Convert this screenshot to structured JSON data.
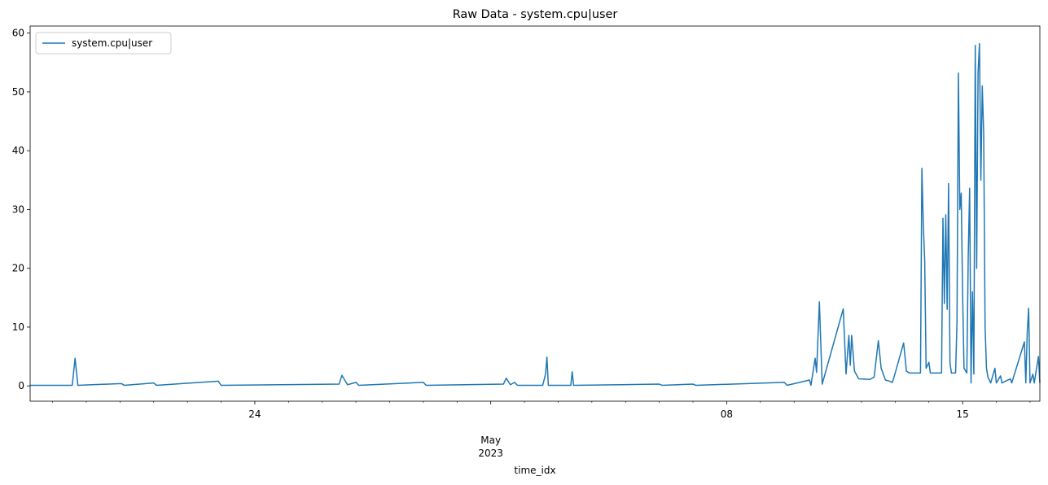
{
  "chart_data": {
    "type": "line",
    "title": "Raw Data - system.cpu|user",
    "xlabel": "time_idx",
    "x": [
      "2023-04-17 08:00",
      "2023-04-18 14:00",
      "2023-04-18 16:00",
      "2023-04-18 18:00",
      "2023-04-20 01:00",
      "2023-04-20 03:00",
      "2023-04-21 00:00",
      "2023-04-21 02:00",
      "2023-04-22 22:00",
      "2023-04-23 00:00",
      "2023-04-26 12:00",
      "2023-04-26 14:00",
      "2023-04-26 18:00",
      "2023-04-27 00:00",
      "2023-04-27 02:00",
      "2023-04-29 00:00",
      "2023-04-29 02:00",
      "2023-05-01 09:00",
      "2023-05-01 11:00",
      "2023-05-01 14:00",
      "2023-05-01 17:00",
      "2023-05-01 19:00",
      "2023-05-02 13:00",
      "2023-05-02 15:00",
      "2023-05-02 16:00",
      "2023-05-02 17:00",
      "2023-05-03 09:00",
      "2023-05-03 10:00",
      "2023-05-03 11:00",
      "2023-05-06 00:00",
      "2023-05-06 02:00",
      "2023-05-07 00:00",
      "2023-05-07 02:00",
      "2023-05-09 17:00",
      "2023-05-09 19:00",
      "2023-05-10 11:00",
      "2023-05-10 12:00",
      "2023-05-10 15:00",
      "2023-05-10 16:00",
      "2023-05-10 18:00",
      "2023-05-10 20:00",
      "2023-05-11 11:00",
      "2023-05-11 13:00",
      "2023-05-11 15:00",
      "2023-05-11 16:00",
      "2023-05-11 17:00",
      "2023-05-11 19:00",
      "2023-05-11 22:00",
      "2023-05-12 06:00",
      "2023-05-12 09:00",
      "2023-05-12 12:00",
      "2023-05-12 14:00",
      "2023-05-12 17:00",
      "2023-05-12 20:00",
      "2023-05-12 22:00",
      "2023-05-13 00:00",
      "2023-05-13 06:00",
      "2023-05-13 08:00",
      "2023-05-13 10:00",
      "2023-05-13 18:00",
      "2023-05-13 19:00",
      "2023-05-13 20:00",
      "2023-05-13 21:00",
      "2023-05-13 22:00",
      "2023-05-14 00:00",
      "2023-05-14 01:00",
      "2023-05-14 09:00",
      "2023-05-14 10:00",
      "2023-05-14 11:00",
      "2023-05-14 12:00",
      "2023-05-14 13:00",
      "2023-05-14 14:00",
      "2023-05-14 15:00",
      "2023-05-14 16:00",
      "2023-05-14 19:00",
      "2023-05-14 20:00",
      "2023-05-14 21:00",
      "2023-05-14 22:00",
      "2023-05-14 23:00",
      "2023-05-15 00:00",
      "2023-05-15 01:00",
      "2023-05-15 03:00",
      "2023-05-15 04:00",
      "2023-05-15 05:00",
      "2023-05-15 06:00",
      "2023-05-15 07:00",
      "2023-05-15 08:00",
      "2023-05-15 09:00",
      "2023-05-15 10:00",
      "2023-05-15 11:00",
      "2023-05-15 12:00",
      "2023-05-15 13:00",
      "2023-05-15 14:00",
      "2023-05-15 15:00",
      "2023-05-15 16:00",
      "2023-05-15 17:00",
      "2023-05-15 18:00",
      "2023-05-15 20:00",
      "2023-05-15 23:00",
      "2023-05-16 00:00",
      "2023-05-16 03:00",
      "2023-05-16 04:00",
      "2023-05-16 10:00",
      "2023-05-16 11:00",
      "2023-05-16 20:00",
      "2023-05-16 21:00",
      "2023-05-16 22:00",
      "2023-05-16 23:00",
      "2023-05-17 00:00",
      "2023-05-17 02:00",
      "2023-05-17 03:00",
      "2023-05-17 06:00",
      "2023-05-17 07:00"
    ],
    "series": [
      {
        "name": "system.cpu|user",
        "color": "#1f77b4",
        "values": [
          0.1,
          0.1,
          4.7,
          0.1,
          0.4,
          0.1,
          0.5,
          0.1,
          0.8,
          0.1,
          0.3,
          1.8,
          0.2,
          0.6,
          0.1,
          0.6,
          0.1,
          0.3,
          1.3,
          0.2,
          0.6,
          0.1,
          0.1,
          2.0,
          4.9,
          0.1,
          0.1,
          2.4,
          0.1,
          0.3,
          0.1,
          0.3,
          0.1,
          0.6,
          0.1,
          1.0,
          0.1,
          4.7,
          2.3,
          14.3,
          0.3,
          13.1,
          2.0,
          8.6,
          3.5,
          8.6,
          2.5,
          1.2,
          1.1,
          1.5,
          7.7,
          3.0,
          1.0,
          0.8,
          0.6,
          2.2,
          7.3,
          2.5,
          2.2,
          2.2,
          37,
          27.5,
          21.3,
          3,
          4,
          2.2,
          2.2,
          28.5,
          14,
          29.1,
          13,
          34.4,
          4,
          2.2,
          2.2,
          11,
          53.2,
          30,
          32.8,
          15.5,
          3,
          2.2,
          22,
          33.6,
          0.5,
          16,
          2.0,
          57.9,
          20,
          53.3,
          58.2,
          35,
          51,
          43,
          10,
          3,
          1.5,
          0.5,
          3.0,
          0.5,
          1.7,
          0.5,
          1.2,
          0.5,
          7.5,
          0.5,
          9,
          13.2,
          0.5,
          2,
          0.5,
          5,
          0.5
        ]
      }
    ],
    "xlim": [
      "2023-04-17 08:00",
      "2023-05-17 07:00"
    ],
    "xticks": [
      {
        "value": "2023-04-24 00:00",
        "label": "24"
      },
      {
        "value": "2023-05-01 00:00",
        "label": "May\n2023"
      },
      {
        "value": "2023-05-08 00:00",
        "label": "08"
      },
      {
        "value": "2023-05-15 00:00",
        "label": "15"
      }
    ],
    "ylim": [
      -2.6,
      61.2
    ],
    "yticks": [
      0,
      10,
      20,
      30,
      40,
      50,
      60
    ],
    "legend": "upper left",
    "grid": false
  }
}
